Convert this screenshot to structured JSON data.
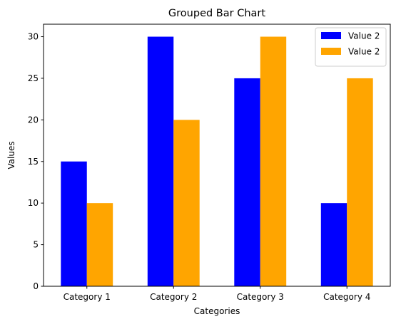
{
  "chart_data": {
    "type": "bar",
    "title": "Grouped Bar Chart",
    "xlabel": "Categories",
    "ylabel": "Values",
    "categories": [
      "Category 1",
      "Category 2",
      "Category 3",
      "Category 4"
    ],
    "series": [
      {
        "name": "Value 2",
        "color": "#0000ff",
        "values": [
          15,
          30,
          25,
          10
        ]
      },
      {
        "name": "Value 2",
        "color": "#ffa500",
        "values": [
          10,
          20,
          30,
          25
        ]
      }
    ],
    "ylim": [
      0,
      31.5
    ],
    "yticks": [
      0,
      5,
      10,
      15,
      20,
      25,
      30
    ],
    "grid": false,
    "legend": "top-right"
  }
}
